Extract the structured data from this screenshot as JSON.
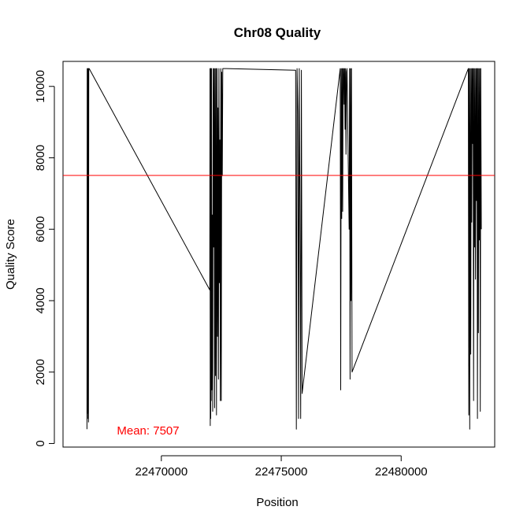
{
  "chart_data": {
    "type": "line",
    "title": "Chr08 Quality",
    "xlabel": "Position",
    "ylabel": "Quality Score",
    "xlim": [
      22465900,
      22483900
    ],
    "ylim": [
      -100,
      10700
    ],
    "x_ticks": [
      22470000,
      22475000,
      22480000
    ],
    "x_tick_labels": [
      "22470000",
      "22475000",
      "22480000"
    ],
    "y_ticks": [
      0,
      2000,
      4000,
      6000,
      8000,
      10000
    ],
    "y_tick_labels": [
      "0",
      "2000",
      "4000",
      "6000",
      "8000",
      "10000"
    ],
    "grid": false,
    "series": [
      {
        "color": "#000000",
        "x": [
          22466900,
          22466910,
          22466920,
          22466930,
          22466940,
          22466950,
          22466960,
          22466975,
          22466990,
          22472020,
          22472030,
          22472040,
          22472050,
          22472060,
          22472070,
          22472080,
          22472090,
          22472100,
          22472120,
          22472140,
          22472160,
          22472180,
          22472200,
          22472220,
          22472240,
          22472260,
          22472280,
          22472300,
          22472320,
          22472340,
          22472360,
          22472380,
          22472400,
          22472420,
          22472440,
          22472460,
          22472480,
          22472500,
          22472520,
          22472540,
          22472560,
          22472580,
          22472600,
          22472620,
          22472640,
          22472660,
          22472680,
          22472700,
          22472720,
          22475600,
          22475630,
          22475660,
          22475690,
          22475720,
          22475750,
          22475780,
          22475810,
          22475840,
          22475870,
          22477460,
          22477480,
          22477500,
          22477520,
          22477540,
          22477560,
          22477580,
          22477600,
          22477620,
          22477640,
          22477660,
          22477680,
          22477700,
          22477720,
          22477740,
          22477830,
          22477850,
          22477870,
          22477890,
          22477910,
          22477930,
          22477950,
          22482800,
          22482820,
          22482840,
          22482860,
          22482880,
          22482900,
          22482920,
          22482940,
          22482960,
          22482980,
          22483000,
          22483020,
          22483040,
          22483060,
          22483080,
          22483100,
          22483120,
          22483140,
          22483160,
          22483180,
          22483200,
          22483220,
          22483240,
          22483260,
          22483280,
          22483300,
          22483320,
          22483340
        ],
        "values": [
          400,
          10500,
          850,
          10500,
          700,
          10500,
          600,
          10500,
          10500,
          4300,
          10500,
          500,
          10500,
          700,
          10500,
          1200,
          10500,
          1500,
          6400,
          900,
          10500,
          5500,
          10500,
          1000,
          10500,
          1900,
          10500,
          800,
          10500,
          3000,
          9400,
          1800,
          10500,
          4500,
          8500,
          1200,
          10500,
          1200,
          10400,
          7500,
          10500,
          10500,
          10500,
          10500,
          10500,
          10500,
          10500,
          10500,
          10500,
          10450,
          400,
          10500,
          9300,
          700,
          10500,
          6500,
          700,
          10450,
          1400,
          10500,
          1500,
          10500,
          6300,
          10500,
          6500,
          10500,
          10500,
          9500,
          10500,
          8800,
          10500,
          8100,
          10400,
          10500,
          6000,
          10500,
          1800,
          10500,
          4000,
          10500,
          2000,
          10500,
          800,
          10500,
          400,
          10500,
          2500,
          10500,
          6200,
          10500,
          8400,
          10500,
          1200,
          10500,
          5500,
          10500,
          4600,
          10500,
          6800,
          10500,
          700,
          10500,
          3100,
          10500,
          5700,
          10500,
          900,
          10500,
          6000
        ]
      }
    ],
    "hline": {
      "value": 7507,
      "color": "#ff0000"
    },
    "annotation": {
      "text": "Mean: 7507",
      "color": "#ff0000"
    }
  }
}
